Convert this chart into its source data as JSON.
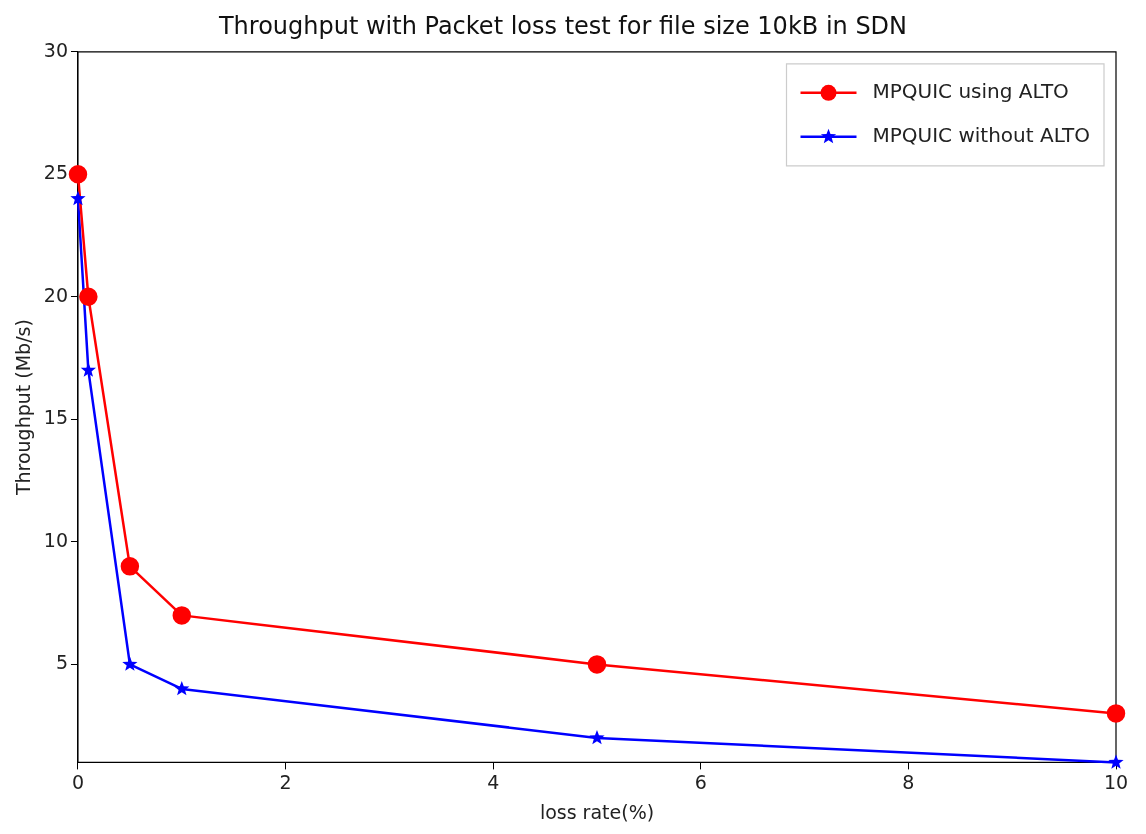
{
  "chart_data": {
    "type": "line",
    "title": "Throughput with Packet loss test for file size 10kB in SDN",
    "xlabel": "loss rate(%)",
    "ylabel": "Throughput (Mb/s)",
    "x": [
      0,
      0.1,
      0.5,
      1,
      5,
      10
    ],
    "series": [
      {
        "name": "MPQUIC using ALTO",
        "color": "#ff0000",
        "marker": "circle",
        "values": [
          25,
          20,
          9,
          7,
          5,
          3
        ]
      },
      {
        "name": "MPQUIC without ALTO",
        "color": "#0000ff",
        "marker": "star",
        "values": [
          24,
          17,
          5,
          4,
          2,
          1
        ]
      }
    ],
    "xlim": [
      0,
      10
    ],
    "xticks": [
      0,
      2,
      4,
      6,
      8,
      10
    ],
    "ylim": [
      1,
      30
    ],
    "yticks": [
      5,
      10,
      15,
      20,
      25,
      30
    ],
    "grid": false,
    "legend": "top right",
    "line_style": "solid"
  }
}
